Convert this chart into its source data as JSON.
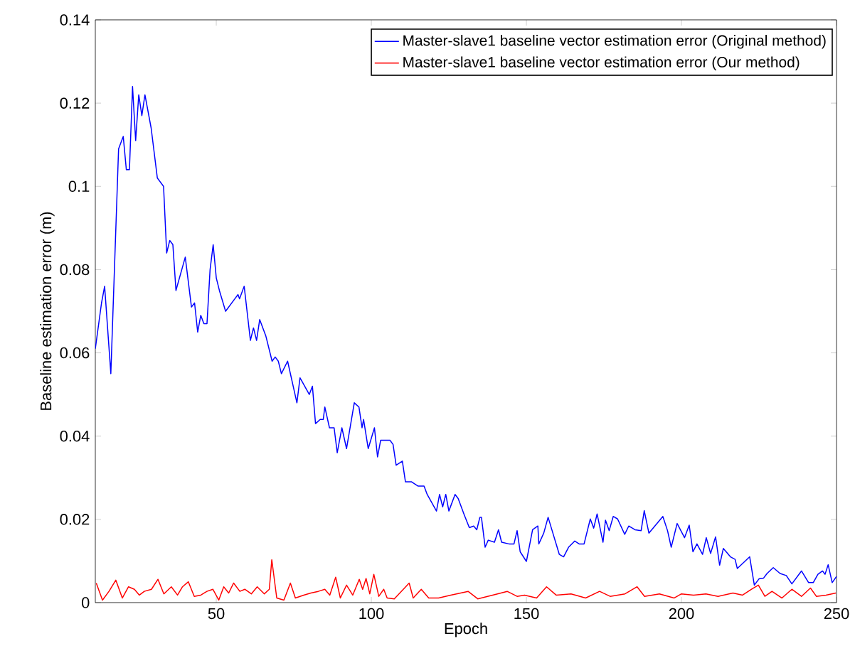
{
  "chart_data": {
    "type": "line",
    "xlabel": "Epoch",
    "ylabel": "Baseline estimation error (m)",
    "xlim": [
      11,
      250
    ],
    "ylim": [
      0,
      0.14
    ],
    "xticks": [
      50,
      100,
      150,
      200,
      250
    ],
    "yticks": [
      0,
      0.02,
      0.04,
      0.06,
      0.08,
      0.1,
      0.12,
      0.14
    ],
    "legend": "top right",
    "line_style": "solid",
    "series": [
      {
        "name": "Master-slave1 baseline vector estimation error (Original method)",
        "color": "#0000ff",
        "x": [
          11,
          13,
          14,
          16,
          18.5,
          20,
          21,
          22,
          23,
          24,
          25,
          26,
          27,
          29,
          31,
          33,
          34,
          35,
          36,
          37,
          40,
          42,
          43,
          44,
          45,
          46,
          47,
          48,
          49,
          50,
          51,
          53,
          56,
          57,
          57.5,
          59,
          61,
          62,
          63,
          64,
          66,
          68,
          69,
          70,
          71,
          73,
          76,
          77,
          80,
          81,
          82,
          83.5,
          84.5,
          85,
          86.5,
          88,
          89,
          90.5,
          92,
          94.5,
          96,
          97,
          97.5,
          99,
          101,
          102,
          103,
          106,
          107,
          108,
          110,
          111,
          113,
          115,
          117,
          118,
          121,
          122,
          123,
          124,
          125,
          127,
          128,
          130,
          131.6,
          133,
          134,
          135,
          135.5,
          136.7,
          137.7,
          139.7,
          141,
          142,
          144.4,
          146,
          147,
          148,
          150,
          152,
          153.7,
          154,
          155.6,
          157,
          160.6,
          162,
          163.6,
          165.6,
          167,
          168.6,
          170.6,
          171.7,
          172.8,
          174.7,
          175.5,
          176.7,
          178,
          179.4,
          181.7,
          183,
          185,
          187,
          188,
          189.5,
          194,
          195.5,
          196.7,
          198.6,
          201,
          202.5,
          203.7,
          205,
          206.8,
          208,
          209.4,
          211,
          212.3,
          213.5,
          215.8,
          217.3,
          218,
          222,
          223.5,
          225,
          226.5,
          227.6,
          229.6,
          231.8,
          233.8,
          235.6,
          238.7,
          241,
          242.5,
          244,
          245.5,
          246.3,
          247.3,
          248.6,
          250
        ],
        "values": [
          0.061,
          0.072,
          0.076,
          0.055,
          0.109,
          0.112,
          0.104,
          0.104,
          0.124,
          0.111,
          0.122,
          0.117,
          0.122,
          0.114,
          0.102,
          0.1,
          0.084,
          0.087,
          0.086,
          0.075,
          0.083,
          0.071,
          0.072,
          0.065,
          0.069,
          0.067,
          0.067,
          0.08,
          0.086,
          0.078,
          0.075,
          0.07,
          0.073,
          0.074,
          0.073,
          0.076,
          0.063,
          0.066,
          0.063,
          0.068,
          0.064,
          0.058,
          0.059,
          0.058,
          0.055,
          0.058,
          0.048,
          0.054,
          0.05,
          0.052,
          0.043,
          0.044,
          0.044,
          0.047,
          0.042,
          0.042,
          0.036,
          0.042,
          0.037,
          0.048,
          0.047,
          0.042,
          0.044,
          0.037,
          0.042,
          0.035,
          0.039,
          0.039,
          0.038,
          0.033,
          0.034,
          0.029,
          0.029,
          0.028,
          0.028,
          0.026,
          0.022,
          0.026,
          0.023,
          0.026,
          0.022,
          0.026,
          0.025,
          0.021,
          0.018,
          0.0184,
          0.0175,
          0.0205,
          0.0205,
          0.0133,
          0.015,
          0.0145,
          0.0175,
          0.0145,
          0.0141,
          0.0141,
          0.0173,
          0.0122,
          0.0099,
          0.0175,
          0.0184,
          0.0141,
          0.0167,
          0.0205,
          0.0116,
          0.011,
          0.0133,
          0.0148,
          0.0141,
          0.0141,
          0.0201,
          0.0179,
          0.0213,
          0.0145,
          0.0198,
          0.0173,
          0.0207,
          0.0201,
          0.0164,
          0.0184,
          0.0175,
          0.0173,
          0.0221,
          0.0167,
          0.0207,
          0.0173,
          0.0133,
          0.019,
          0.0156,
          0.0186,
          0.0122,
          0.0141,
          0.0116,
          0.0156,
          0.0118,
          0.0158,
          0.009,
          0.013,
          0.011,
          0.0104,
          0.0082,
          0.011,
          0.0042,
          0.0057,
          0.0059,
          0.007,
          0.0084,
          0.007,
          0.0065,
          0.0045,
          0.0076,
          0.0048,
          0.0048,
          0.0068,
          0.0076,
          0.0068,
          0.0091,
          0.0048,
          0.0063
        ]
      },
      {
        "name": "Master-slave1 baseline vector estimation error (Our method)",
        "color": "#ff0000",
        "x": [
          11.3,
          13.3,
          15.4,
          17.6,
          19.7,
          21.7,
          23.6,
          25.2,
          26.8,
          29.1,
          31.2,
          33.1,
          35.5,
          37.5,
          39.1,
          41,
          42.9,
          45,
          47,
          48.9,
          50.8,
          52.4,
          54,
          55.6,
          57.6,
          59.2,
          61.3,
          63.2,
          65.5,
          67.1,
          67.9,
          69.5,
          71.8,
          73.9,
          75.5,
          78.2,
          80.5,
          82.9,
          85,
          86.6,
          88.5,
          90,
          92,
          94,
          96.1,
          97.2,
          98.3,
          99.5,
          100.8,
          102.4,
          104,
          105.1,
          107.4,
          112.2,
          113.5,
          116.1,
          118.5,
          121.7,
          125.6,
          131.2,
          134.3,
          139.1,
          143.8,
          147,
          149.4,
          153.3,
          156.5,
          159.6,
          164.4,
          169.1,
          173.6,
          177,
          181.8,
          185.7,
          188.1,
          192.9,
          197.6,
          200,
          203.9,
          207.9,
          211.8,
          216.6,
          219.7,
          222.6,
          224.8,
          226.9,
          229.2,
          232.4,
          235.6,
          238.7,
          241.6,
          243.5,
          246.6,
          249.8
        ],
        "values": [
          0.0047,
          0.0006,
          0.0027,
          0.0054,
          0.0011,
          0.0038,
          0.0032,
          0.0018,
          0.0027,
          0.0032,
          0.0056,
          0.0021,
          0.0038,
          0.0018,
          0.0038,
          0.005,
          0.0015,
          0.0018,
          0.0027,
          0.0032,
          0.0006,
          0.0038,
          0.0023,
          0.0047,
          0.0027,
          0.0032,
          0.0021,
          0.0038,
          0.0021,
          0.0032,
          0.0103,
          0.0011,
          0.0006,
          0.0047,
          0.0011,
          0.0018,
          0.0023,
          0.0027,
          0.0032,
          0.0018,
          0.0061,
          0.0011,
          0.0042,
          0.0018,
          0.0056,
          0.0032,
          0.0058,
          0.0021,
          0.0068,
          0.0015,
          0.0032,
          0.0011,
          0.0009,
          0.0047,
          0.0011,
          0.0032,
          0.0011,
          0.0011,
          0.0018,
          0.0027,
          0.0009,
          0.0018,
          0.0027,
          0.0015,
          0.0018,
          0.0011,
          0.0038,
          0.0018,
          0.0021,
          0.0011,
          0.0027,
          0.0015,
          0.0021,
          0.0038,
          0.0015,
          0.0021,
          0.0011,
          0.0021,
          0.0018,
          0.0021,
          0.0015,
          0.0023,
          0.0018,
          0.0032,
          0.0042,
          0.0015,
          0.0027,
          0.0011,
          0.0032,
          0.0015,
          0.0035,
          0.0015,
          0.0018,
          0.0023
        ]
      }
    ]
  }
}
